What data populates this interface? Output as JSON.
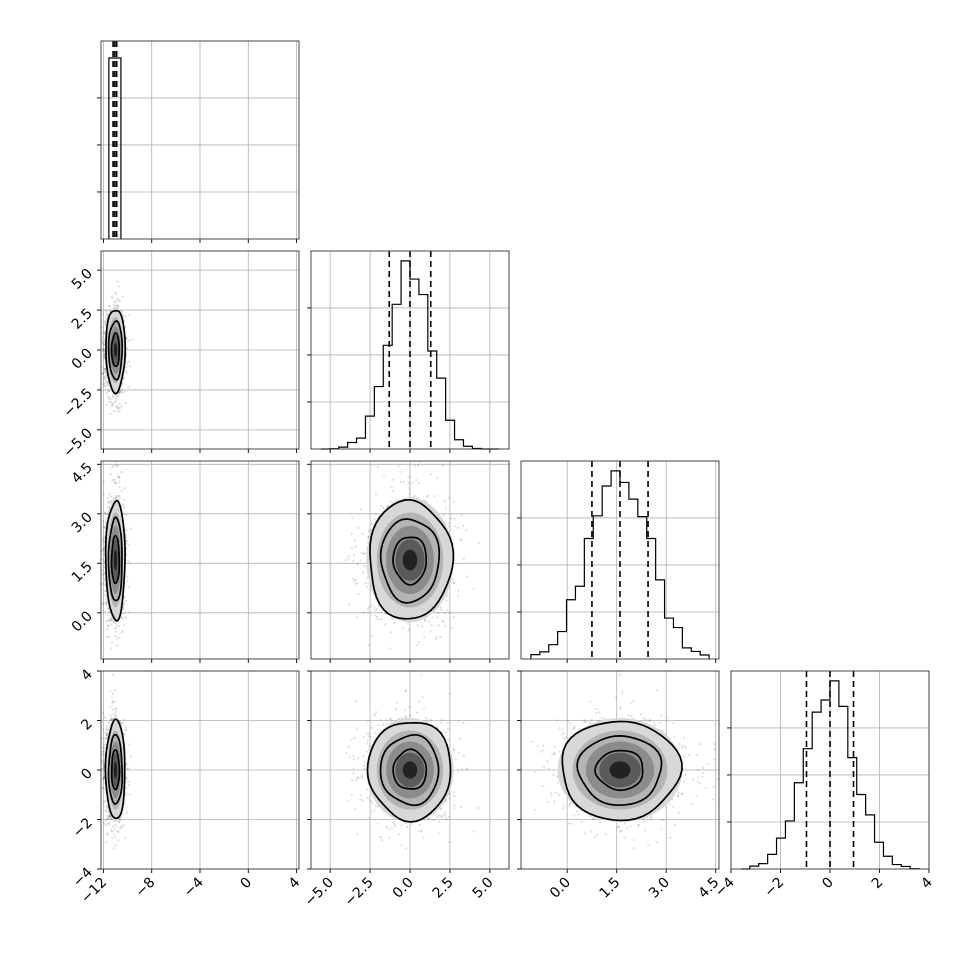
{
  "chart_data": {
    "type": "corner",
    "n_params": 4,
    "axes": [
      {
        "ticks": [
          -12,
          -8,
          -4,
          0,
          4
        ],
        "tick_labels": [
          "−12",
          "−8",
          "−4",
          "0",
          "4"
        ],
        "lim": [
          -12.2,
          4.2
        ]
      },
      {
        "ticks": [
          -5.0,
          -2.5,
          0.0,
          2.5,
          5.0
        ],
        "tick_labels": [
          "−5.0",
          "−2.5",
          "0.0",
          "2.5",
          "5.0"
        ],
        "lim": [
          -6.2,
          6.2
        ]
      },
      {
        "ticks": [
          0.0,
          1.5,
          3.0,
          4.5
        ],
        "tick_labels": [
          "0.0",
          "1.5",
          "3.0",
          "4.5"
        ],
        "lim": [
          -1.4,
          4.6
        ]
      },
      {
        "ticks": [
          -4,
          -2,
          0,
          2,
          4
        ],
        "tick_labels": [
          "−4",
          "−2",
          "0",
          "2",
          "4"
        ],
        "lim": [
          -4.0,
          4.0
        ]
      }
    ],
    "distributions": [
      {
        "center": -11.0,
        "sigma": 0.4,
        "skew": -0.9,
        "q16": -11.2,
        "q50": -11.05,
        "q84": -10.9
      },
      {
        "center": 0.0,
        "sigma": 1.3,
        "q16": -1.3,
        "q50": 0.0,
        "q84": 1.3
      },
      {
        "center": 1.6,
        "sigma": 0.9,
        "q16": 0.75,
        "q50": 1.6,
        "q84": 2.45
      },
      {
        "center": 0.0,
        "sigma": 1.0,
        "q16": -0.95,
        "q50": 0.0,
        "q84": 0.95
      }
    ],
    "grid": true,
    "quantile_lines": "dashed"
  }
}
